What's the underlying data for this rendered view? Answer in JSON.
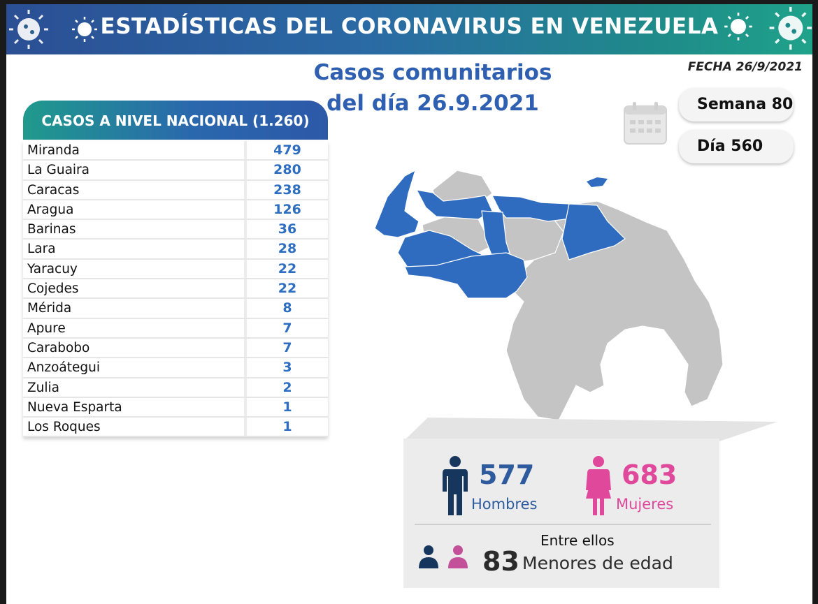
{
  "banner": {
    "title": "ESTADÍSTICAS DEL CORONAVIRUS EN VENEZUELA",
    "virus_icon": "coronavirus-icon"
  },
  "subtitle": {
    "line1": "Casos comunitarios",
    "line2": "del día 26.9.2021"
  },
  "fecha": "FECHA 26/9/2021",
  "semana": "Semana 80",
  "dia": "Día 560",
  "calendar_icon": "calendar-icon",
  "national": {
    "header": "CASOS A NIVEL NACIONAL (1.260)",
    "rows": [
      {
        "name": "Miranda",
        "value": "479"
      },
      {
        "name": "La Guaira",
        "value": "280"
      },
      {
        "name": "Caracas",
        "value": "238"
      },
      {
        "name": "Aragua",
        "value": "126"
      },
      {
        "name": "Barinas",
        "value": "36"
      },
      {
        "name": "Lara",
        "value": "28"
      },
      {
        "name": "Yaracuy",
        "value": "22"
      },
      {
        "name": "Cojedes",
        "value": "22"
      },
      {
        "name": "Mérida",
        "value": "8"
      },
      {
        "name": "Apure",
        "value": "7"
      },
      {
        "name": "Carabobo",
        "value": "7"
      },
      {
        "name": "Anzoátegui",
        "value": "3"
      },
      {
        "name": "Zulia",
        "value": "2"
      },
      {
        "name": "Nueva Esparta",
        "value": "1"
      },
      {
        "name": "Los Roques",
        "value": "1"
      }
    ]
  },
  "stats": {
    "hombres_count": "577",
    "hombres_label": "Hombres",
    "mujeres_count": "683",
    "mujeres_label": "Mujeres",
    "entre_ellos": "Entre ellos",
    "menores_count": "83",
    "menores_label": "Menores de edad"
  },
  "colors": {
    "blue": "#2e6ec0",
    "map_highlight": "#2f6cc0",
    "map_base": "#c4c4c4",
    "pink": "#e0489b",
    "navy": "#17365d"
  }
}
